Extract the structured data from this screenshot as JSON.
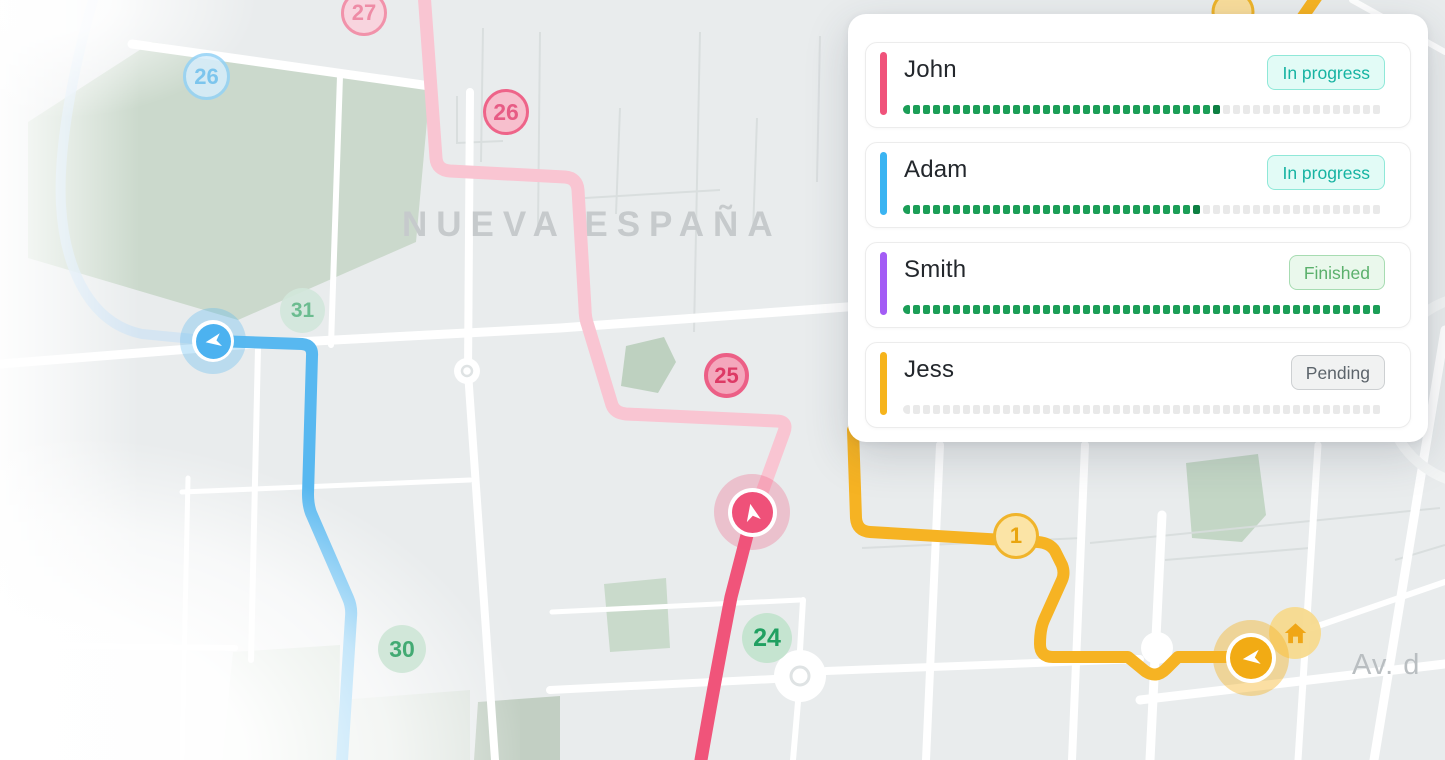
{
  "panel": {
    "drivers": [
      {
        "name": "John",
        "status": "In progress",
        "status_type": "in_progress",
        "accent_color": "#f0537b",
        "progress_percent": 66
      },
      {
        "name": "Adam",
        "status": "In progress",
        "status_type": "in_progress",
        "accent_color": "#3ab4f2",
        "progress_percent": 62
      },
      {
        "name": "Smith",
        "status": "Finished",
        "status_type": "finished",
        "accent_color": "#a35cf5",
        "progress_percent": 100
      },
      {
        "name": "Jess",
        "status": "Pending",
        "status_type": "pending",
        "accent_color": "#f6b41c",
        "progress_percent": 0
      }
    ],
    "progress_segments": 48,
    "progress_fill_color": "#1b9e57",
    "progress_empty_color": "#e9e9e9"
  },
  "map": {
    "labels": {
      "district": "NUEVA ESPAÑA",
      "street": "Av. d"
    },
    "stops": [
      {
        "label": "27",
        "route": "pink"
      },
      {
        "label": "26",
        "route": "pink"
      },
      {
        "label": "25",
        "route": "pink"
      },
      {
        "label": "26",
        "route": "blue"
      },
      {
        "label": "31",
        "route": "green"
      },
      {
        "label": "30",
        "route": "green"
      },
      {
        "label": "24",
        "route": "green"
      },
      {
        "label": "1",
        "route": "yellow"
      }
    ],
    "vehicles": [
      {
        "route": "blue",
        "heading": "west"
      },
      {
        "route": "pink",
        "heading": "north"
      },
      {
        "route": "yellow",
        "heading": "west"
      }
    ],
    "home_icon": true,
    "colors": {
      "route_pink": "#f0547a",
      "route_pink_faded": "#f9c5d2",
      "route_blue": "#58b8f0",
      "route_blue_faded": "#cfe4f3",
      "route_yellow": "#f6b323",
      "park": "#cbd9cc",
      "road": "#ffffff",
      "background": "#e9eced"
    }
  }
}
